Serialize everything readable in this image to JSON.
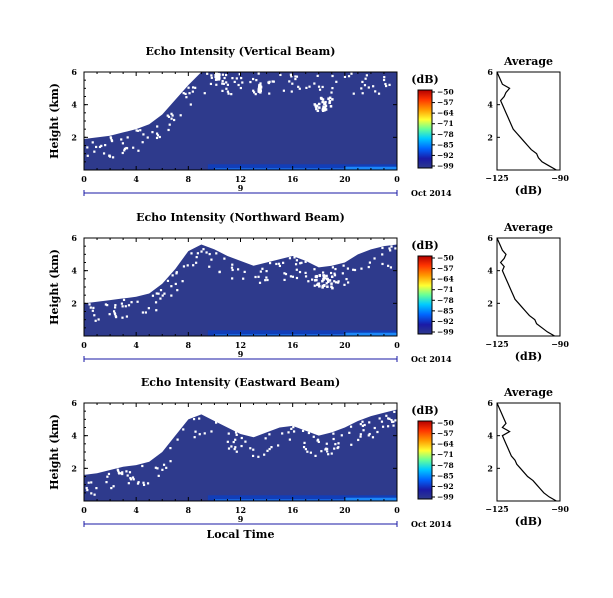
{
  "chart_data": [
    {
      "type": "heatmap",
      "title": "Echo Intensity (Vertical Beam)",
      "ylabel": "Height (km)",
      "x_ticks": [
        "0",
        "4",
        "8",
        "12",
        "16",
        "20",
        "0"
      ],
      "xlim": [
        0,
        24
      ],
      "y_ticks": [
        "6",
        "4",
        "2"
      ],
      "ylim": [
        0,
        6
      ],
      "date_label": "9",
      "date_suffix": "Oct 2014",
      "colorbar_unit": "(dB)",
      "colorbar_ticks": [
        "-50",
        "-57",
        "-64",
        "-71",
        "-78",
        "-85",
        "-92",
        "-99"
      ],
      "colorbar_range": [
        -99,
        -50
      ],
      "clear_air_top_km": [
        1.9,
        2.0,
        2.1,
        2.3,
        2.5,
        2.8,
        3.4,
        4.3,
        5.2,
        6.0,
        6.0,
        6.0,
        6.0,
        6.0,
        6.0,
        6.0,
        6.0,
        6.0,
        6.0,
        6.0,
        6.0,
        6.0,
        6.0,
        6.0,
        6.0
      ],
      "clear_air_top_times_h": [
        0,
        1,
        2,
        3,
        4,
        5,
        6,
        7,
        8,
        9,
        10,
        11,
        12,
        13,
        14,
        15,
        16,
        17,
        18,
        19,
        20,
        21,
        22,
        23,
        24
      ],
      "gaps": [
        {
          "t": [
            17.6,
            19.0
          ],
          "h": [
            3.7,
            4.5
          ]
        },
        {
          "t": [
            13.3,
            13.5
          ],
          "h": [
            4.8,
            5.3
          ]
        },
        {
          "t": [
            10.0,
            10.3
          ],
          "h": [
            5.6,
            6.0
          ]
        }
      ],
      "average_profile": {
        "title": "Average",
        "xlabel": "(dB)",
        "x_ticks": [
          "-125",
          "-90"
        ],
        "xlim": [
          -125,
          -90
        ],
        "y_ticks": [
          "6",
          "4",
          "2"
        ],
        "ylim": [
          0,
          6
        ],
        "db": [
          -92,
          -96,
          -100,
          -102,
          -103,
          -106,
          -108,
          -110,
          -112,
          -114,
          -116,
          -117,
          -118,
          -119,
          -120,
          -121,
          -122,
          -123,
          -121,
          -120,
          -118,
          -122,
          -123,
          -124,
          -125
        ],
        "height_km": [
          0.0,
          0.25,
          0.5,
          0.75,
          1.0,
          1.25,
          1.5,
          1.75,
          2.0,
          2.25,
          2.5,
          2.75,
          3.0,
          3.25,
          3.5,
          3.75,
          4.0,
          4.25,
          4.5,
          4.75,
          5.0,
          5.25,
          5.5,
          5.75,
          6.0
        ]
      }
    },
    {
      "type": "heatmap",
      "title": "Echo Intensity (Northward Beam)",
      "ylabel": "Height (km)",
      "x_ticks": [
        "0",
        "4",
        "8",
        "12",
        "16",
        "20",
        "0"
      ],
      "xlim": [
        0,
        24
      ],
      "y_ticks": [
        "6",
        "4",
        "2"
      ],
      "ylim": [
        0,
        6
      ],
      "date_label": "9",
      "date_suffix": "Oct 2014",
      "colorbar_unit": "(dB)",
      "colorbar_ticks": [
        "-50",
        "-57",
        "-64",
        "-71",
        "-78",
        "-85",
        "-92",
        "-99"
      ],
      "colorbar_range": [
        -99,
        -50
      ],
      "clear_air_top_km": [
        2.0,
        2.1,
        2.2,
        2.3,
        2.4,
        2.6,
        3.2,
        4.1,
        5.2,
        5.6,
        5.3,
        4.9,
        4.6,
        4.3,
        4.5,
        4.7,
        4.9,
        4.6,
        4.2,
        4.3,
        4.5,
        5.0,
        5.3,
        5.5,
        5.6
      ],
      "clear_air_top_times_h": [
        0,
        1,
        2,
        3,
        4,
        5,
        6,
        7,
        8,
        9,
        10,
        11,
        12,
        13,
        14,
        15,
        16,
        17,
        18,
        19,
        20,
        21,
        22,
        23,
        24
      ],
      "gaps": [
        {
          "t": [
            17.6,
            19.0
          ],
          "h": [
            3.0,
            3.8
          ]
        }
      ],
      "average_profile": {
        "title": "Average",
        "xlabel": "(dB)",
        "x_ticks": [
          "-125",
          "-90"
        ],
        "xlim": [
          -125,
          -90
        ],
        "y_ticks": [
          "6",
          "4",
          "2"
        ],
        "ylim": [
          0,
          6
        ],
        "db": [
          -93,
          -97,
          -100,
          -103,
          -104,
          -107,
          -109,
          -111,
          -113,
          -115,
          -116,
          -117,
          -118,
          -119,
          -120,
          -121,
          -122,
          -121,
          -123,
          -121,
          -120,
          -122,
          -123,
          -124,
          -125
        ],
        "height_km": [
          0.0,
          0.25,
          0.5,
          0.75,
          1.0,
          1.25,
          1.5,
          1.75,
          2.0,
          2.25,
          2.5,
          2.75,
          3.0,
          3.25,
          3.5,
          3.75,
          4.0,
          4.25,
          4.5,
          4.75,
          5.0,
          5.25,
          5.5,
          5.75,
          6.0
        ]
      }
    },
    {
      "type": "heatmap",
      "title": "Echo Intensity (Eastward Beam)",
      "ylabel": "Height (km)",
      "xlabel": "Local Time",
      "x_ticks": [
        "0",
        "4",
        "8",
        "12",
        "16",
        "20",
        "0"
      ],
      "xlim": [
        0,
        24
      ],
      "y_ticks": [
        "6",
        "4",
        "2"
      ],
      "ylim": [
        0,
        6
      ],
      "date_label": "9",
      "date_suffix": "Oct 2014",
      "colorbar_unit": "(dB)",
      "colorbar_ticks": [
        "-50",
        "-57",
        "-64",
        "-71",
        "-78",
        "-85",
        "-92",
        "-99"
      ],
      "colorbar_range": [
        -99,
        -50
      ],
      "clear_air_top_km": [
        1.6,
        1.7,
        1.9,
        2.1,
        2.2,
        2.4,
        3.0,
        4.0,
        5.0,
        5.3,
        4.9,
        4.5,
        4.1,
        3.9,
        4.2,
        4.5,
        4.6,
        4.3,
        4.0,
        4.2,
        4.5,
        4.9,
        5.2,
        5.4,
        5.6
      ],
      "clear_air_top_times_h": [
        0,
        1,
        2,
        3,
        4,
        5,
        6,
        7,
        8,
        9,
        10,
        11,
        12,
        13,
        14,
        15,
        16,
        17,
        18,
        19,
        20,
        21,
        22,
        23,
        24
      ],
      "gaps": [],
      "average_profile": {
        "title": "Average",
        "xlabel": "(dB)",
        "x_ticks": [
          "-125",
          "-90"
        ],
        "xlim": [
          -125,
          -90
        ],
        "y_ticks": [
          "6",
          "4",
          "2"
        ],
        "ylim": [
          0,
          6
        ],
        "db": [
          -92,
          -96,
          -99,
          -101,
          -103,
          -105,
          -108,
          -110,
          -112,
          -114,
          -115,
          -117,
          -118,
          -119,
          -120,
          -121,
          -122,
          -118,
          -122,
          -120,
          -121,
          -122,
          -123,
          -124,
          -125
        ],
        "height_km": [
          0.0,
          0.25,
          0.5,
          0.75,
          1.0,
          1.25,
          1.5,
          1.75,
          2.0,
          2.25,
          2.5,
          2.75,
          3.0,
          3.25,
          3.5,
          3.75,
          4.0,
          4.25,
          4.5,
          4.75,
          5.0,
          5.25,
          5.5,
          5.75,
          6.0
        ]
      }
    }
  ],
  "colors": {
    "background": "#2e3a8c",
    "clear": "#ffffff",
    "colorbar": [
      "#b30000",
      "#ff3300",
      "#ff9900",
      "#ffff33",
      "#66ff99",
      "#00ccff",
      "#0066ff",
      "#1a1aa6",
      "#2e3a8c"
    ]
  }
}
